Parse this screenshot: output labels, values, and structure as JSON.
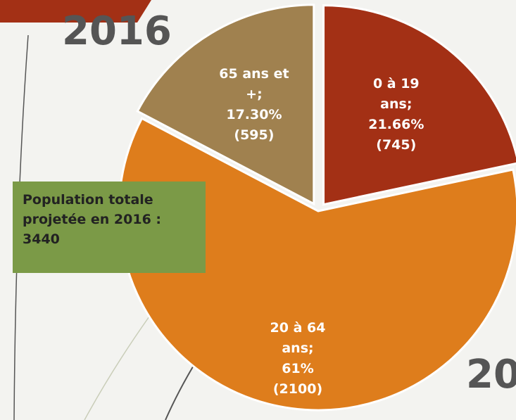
{
  "chart_data": {
    "type": "pie",
    "title": "2016",
    "corner_text": "20",
    "categories": [
      "0 à 19 ans;",
      "20 à 64 ans;",
      "65 ans et +;"
    ],
    "values": [
      745,
      2100,
      595
    ],
    "value_labels": [
      "(745)",
      "(2100)",
      "(595)"
    ],
    "percent_labels": [
      "21.66%",
      "61%",
      "17.30%"
    ],
    "colors": [
      "#a33015",
      "#de7d1c",
      "#a0814f"
    ],
    "annotation": "Population totale projetée en 2016 : 3440"
  }
}
